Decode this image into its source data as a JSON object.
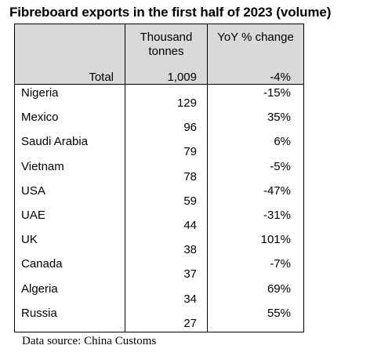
{
  "chart_data": {
    "type": "table",
    "title": "Fibreboard exports in the first half of 2023 (volume)",
    "columns": [
      "Thousand tonnes",
      "YoY % change"
    ],
    "total": {
      "label": "Total",
      "volume": "1,009",
      "change": "-4%"
    },
    "rows": [
      {
        "country": "Nigeria",
        "volume": 129,
        "change": "-15%"
      },
      {
        "country": "Mexico",
        "volume": 96,
        "change": "35%"
      },
      {
        "country": "Saudi Arabia",
        "volume": 79,
        "change": "6%"
      },
      {
        "country": "Vietnam",
        "volume": 78,
        "change": "-5%"
      },
      {
        "country": "USA",
        "volume": 59,
        "change": "-47%"
      },
      {
        "country": "UAE",
        "volume": 44,
        "change": "-31%"
      },
      {
        "country": "UK",
        "volume": 38,
        "change": "101%"
      },
      {
        "country": "Canada",
        "volume": 37,
        "change": "-7%"
      },
      {
        "country": "Algeria",
        "volume": 34,
        "change": "69%"
      },
      {
        "country": "Russia",
        "volume": 27,
        "change": "55%"
      }
    ],
    "source": "Data source: China Customs",
    "header_color": "#d9d9d9"
  }
}
